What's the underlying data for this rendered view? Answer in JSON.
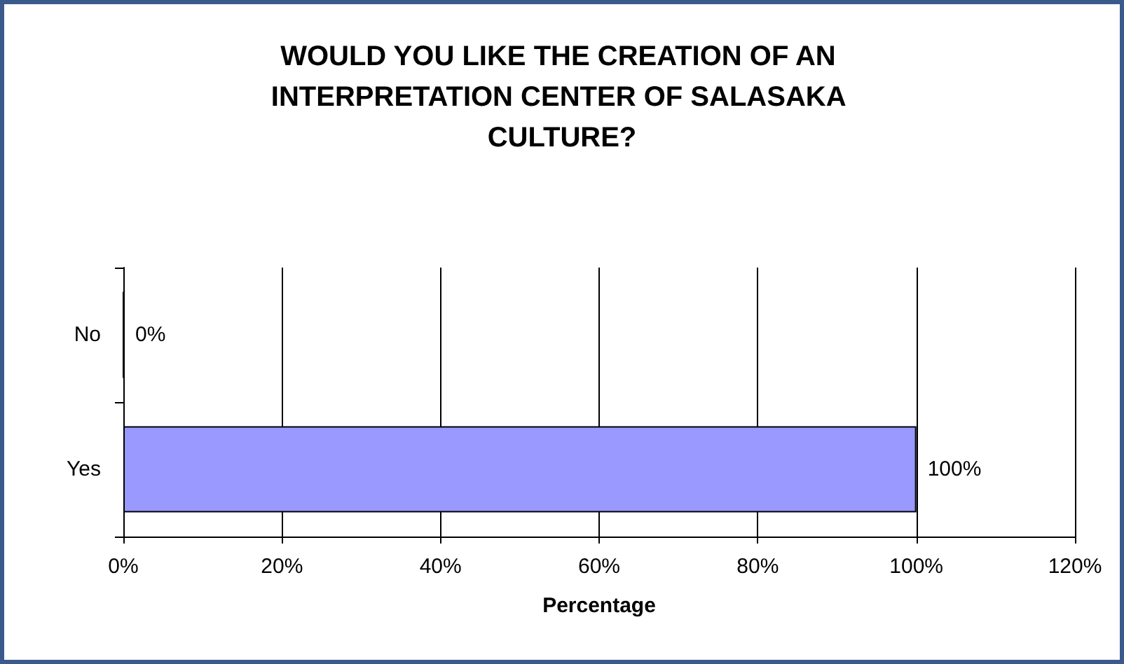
{
  "chart_data": {
    "type": "bar",
    "orientation": "horizontal",
    "title": "WOULD YOU LIKE THE CREATION OF AN INTERPRETATION CENTER OF SALASAKA CULTURE?",
    "xlabel": "Percentage",
    "categories": [
      "No",
      "Yes"
    ],
    "values": [
      0,
      100
    ],
    "color": "#9999ff",
    "value_labels": [
      "0%",
      "100%"
    ],
    "xlim": [
      0,
      120
    ],
    "xticks": [
      {
        "value": 0,
        "label": "0%"
      },
      {
        "value": 20,
        "label": "20%"
      },
      {
        "value": 40,
        "label": "40%"
      },
      {
        "value": 60,
        "label": "60%"
      },
      {
        "value": 80,
        "label": "80%"
      },
      {
        "value": 100,
        "label": "100%"
      },
      {
        "value": 120,
        "label": "120%"
      }
    ],
    "grid": "x"
  }
}
